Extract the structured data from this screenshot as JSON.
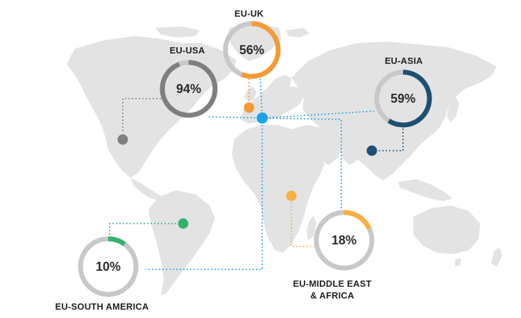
{
  "chart_data": {
    "type": "donut",
    "regions": [
      {
        "name": "EU-UK",
        "value": 56,
        "color": "#f59a35",
        "label_lines": [
          "EU-UK"
        ]
      },
      {
        "name": "EU-USA",
        "value": 94,
        "color": "#7f7f7f",
        "label_lines": [
          "EU-USA"
        ]
      },
      {
        "name": "EU-ASIA",
        "value": 59,
        "color": "#1e4f70",
        "label_lines": [
          "EU-ASIA"
        ]
      },
      {
        "name": "EU-MIDDLE EAST & AFRICA",
        "value": 18,
        "color": "#f8b040",
        "label_lines": [
          "EU-MIDDLE EAST",
          "& AFRICA"
        ]
      },
      {
        "name": "EU-SOUTH AMERICA",
        "value": 10,
        "color": "#33b26b",
        "label_lines": [
          "EU-SOUTH AMERICA"
        ]
      }
    ],
    "hub_color": "#1aa3e8",
    "track_color": "#c7c8ca"
  }
}
